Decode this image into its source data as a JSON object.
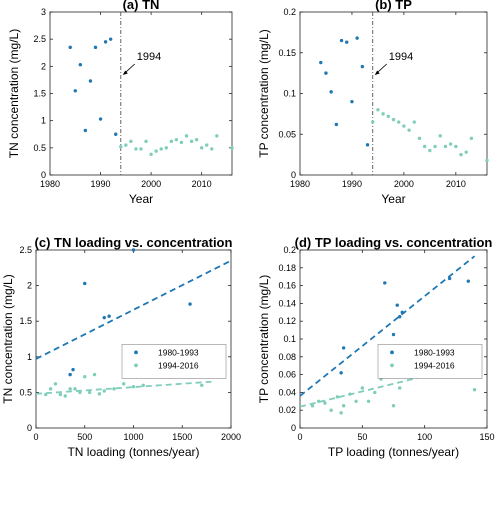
{
  "colors": {
    "pre": "#1f77b4",
    "post": "#7fcdbb",
    "axis": "#262626",
    "vline": "#555555"
  },
  "chart_data": [
    {
      "id": "a",
      "type": "scatter",
      "title": "(a) TN",
      "xlabel": "Year",
      "ylabel": "TN concentration (mg/L)",
      "xlim": [
        1980,
        2016
      ],
      "ylim": [
        0,
        3
      ],
      "xticks": [
        1980,
        1990,
        2000,
        2010
      ],
      "yticks": [
        0,
        0.5,
        1,
        1.5,
        2,
        2.5,
        3
      ],
      "annotation": {
        "text": "1994",
        "x": 1994
      },
      "series": [
        {
          "key": "pre",
          "points": [
            [
              1984,
              2.35
            ],
            [
              1985,
              1.55
            ],
            [
              1986,
              2.03
            ],
            [
              1987,
              0.82
            ],
            [
              1988,
              1.73
            ],
            [
              1989,
              2.35
            ],
            [
              1990,
              1.03
            ],
            [
              1991,
              2.45
            ],
            [
              1992,
              2.5
            ],
            [
              1993,
              0.75
            ]
          ]
        },
        {
          "key": "post",
          "points": [
            [
              1994,
              0.52
            ],
            [
              1995,
              0.55
            ],
            [
              1996,
              0.62
            ],
            [
              1997,
              0.48
            ],
            [
              1998,
              0.48
            ],
            [
              1999,
              0.62
            ],
            [
              2000,
              0.38
            ],
            [
              2001,
              0.44
            ],
            [
              2002,
              0.48
            ],
            [
              2003,
              0.5
            ],
            [
              2004,
              0.62
            ],
            [
              2005,
              0.65
            ],
            [
              2006,
              0.6
            ],
            [
              2007,
              0.72
            ],
            [
              2008,
              0.62
            ],
            [
              2009,
              0.65
            ],
            [
              2010,
              0.5
            ],
            [
              2011,
              0.55
            ],
            [
              2012,
              0.48
            ],
            [
              2013,
              0.72
            ],
            [
              2016,
              0.5
            ]
          ]
        }
      ]
    },
    {
      "id": "b",
      "type": "scatter",
      "title": "(b) TP",
      "xlabel": "Year",
      "ylabel": "TP concentration (mg/L)",
      "xlim": [
        1980,
        2016
      ],
      "ylim": [
        0,
        0.2
      ],
      "xticks": [
        1980,
        1990,
        2000,
        2010
      ],
      "yticks": [
        0,
        0.05,
        0.1,
        0.15,
        0.2
      ],
      "annotation": {
        "text": "1994",
        "x": 1994
      },
      "series": [
        {
          "key": "pre",
          "points": [
            [
              1984,
              0.138
            ],
            [
              1985,
              0.125
            ],
            [
              1986,
              0.102
            ],
            [
              1987,
              0.062
            ],
            [
              1988,
              0.165
            ],
            [
              1989,
              0.163
            ],
            [
              1990,
              0.09
            ],
            [
              1991,
              0.168
            ],
            [
              1992,
              0.133
            ],
            [
              1993,
              0.037
            ]
          ]
        },
        {
          "key": "post",
          "points": [
            [
              1994,
              0.065
            ],
            [
              1995,
              0.08
            ],
            [
              1996,
              0.075
            ],
            [
              1997,
              0.072
            ],
            [
              1998,
              0.068
            ],
            [
              1999,
              0.065
            ],
            [
              2000,
              0.06
            ],
            [
              2001,
              0.055
            ],
            [
              2002,
              0.065
            ],
            [
              2003,
              0.045
            ],
            [
              2004,
              0.035
            ],
            [
              2005,
              0.03
            ],
            [
              2006,
              0.035
            ],
            [
              2007,
              0.048
            ],
            [
              2008,
              0.035
            ],
            [
              2009,
              0.038
            ],
            [
              2010,
              0.035
            ],
            [
              2011,
              0.025
            ],
            [
              2012,
              0.028
            ],
            [
              2013,
              0.045
            ],
            [
              2016,
              0.018
            ]
          ]
        }
      ]
    },
    {
      "id": "c",
      "type": "scatter",
      "title": "(c) TN loading vs. concentration",
      "xlabel": "TN loading (tonnes/year)",
      "ylabel": "TN concentration (mg/L)",
      "xlim": [
        0,
        2000
      ],
      "ylim": [
        0,
        2.5
      ],
      "xticks": [
        0,
        500,
        1000,
        1500,
        2000
      ],
      "yticks": [
        0,
        0.5,
        1,
        1.5,
        2,
        2.5
      ],
      "legend": {
        "position": "right",
        "entries": [
          {
            "key": "pre",
            "label": "1980-1993"
          },
          {
            "key": "post",
            "label": "1994-2016"
          }
        ]
      },
      "series": [
        {
          "key": "pre",
          "points": [
            [
              350,
              0.75
            ],
            [
              380,
              0.82
            ],
            [
              500,
              2.03
            ],
            [
              700,
              1.55
            ],
            [
              750,
              1.57
            ],
            [
              1000,
              2.5
            ],
            [
              1580,
              1.74
            ]
          ]
        },
        {
          "key": "post",
          "points": [
            [
              100,
              0.47
            ],
            [
              150,
              0.55
            ],
            [
              200,
              0.62
            ],
            [
              250,
              0.47
            ],
            [
              300,
              0.45
            ],
            [
              350,
              0.55
            ],
            [
              400,
              0.55
            ],
            [
              450,
              0.5
            ],
            [
              500,
              0.72
            ],
            [
              550,
              0.5
            ],
            [
              600,
              0.75
            ],
            [
              650,
              0.48
            ],
            [
              700,
              0.52
            ],
            [
              800,
              0.55
            ],
            [
              900,
              0.62
            ],
            [
              1000,
              0.58
            ],
            [
              1100,
              0.6
            ],
            [
              1700,
              0.6
            ]
          ]
        }
      ],
      "fits": [
        {
          "key": "pre",
          "from": [
            0,
            0.97
          ],
          "to": [
            2000,
            2.35
          ]
        },
        {
          "key": "post",
          "from": [
            0,
            0.48
          ],
          "to": [
            1800,
            0.65
          ]
        }
      ]
    },
    {
      "id": "d",
      "type": "scatter",
      "title": "(d) TP loading vs. concentration",
      "xlabel": "TP loading (tonnes/year)",
      "ylabel": "TP concentration (mg/L)",
      "xlim": [
        0,
        150
      ],
      "ylim": [
        0,
        0.2
      ],
      "xticks": [
        0,
        50,
        100,
        150
      ],
      "yticks": [
        0,
        0.02,
        0.04,
        0.06,
        0.08,
        0.1,
        0.12,
        0.14,
        0.16,
        0.18,
        0.2
      ],
      "legend": {
        "position": "right",
        "entries": [
          {
            "key": "pre",
            "label": "1980-1993"
          },
          {
            "key": "post",
            "label": "1994-2016"
          }
        ]
      },
      "series": [
        {
          "key": "pre",
          "points": [
            [
              33,
              0.062
            ],
            [
              35,
              0.09
            ],
            [
              68,
              0.163
            ],
            [
              75,
              0.105
            ],
            [
              78,
              0.138
            ],
            [
              80,
              0.125
            ],
            [
              82,
              0.13
            ],
            [
              120,
              0.168
            ],
            [
              135,
              0.165
            ]
          ]
        },
        {
          "key": "post",
          "points": [
            [
              10,
              0.025
            ],
            [
              15,
              0.03
            ],
            [
              20,
              0.028
            ],
            [
              25,
              0.02
            ],
            [
              30,
              0.035
            ],
            [
              33,
              0.017
            ],
            [
              35,
              0.025
            ],
            [
              40,
              0.038
            ],
            [
              45,
              0.03
            ],
            [
              50,
              0.045
            ],
            [
              55,
              0.03
            ],
            [
              60,
              0.04
            ],
            [
              65,
              0.055
            ],
            [
              70,
              0.08
            ],
            [
              75,
              0.025
            ],
            [
              80,
              0.045
            ],
            [
              90,
              0.07
            ],
            [
              140,
              0.043
            ]
          ]
        }
      ],
      "fits": [
        {
          "key": "pre",
          "from": [
            0,
            0.036
          ],
          "to": [
            140,
            0.193
          ]
        },
        {
          "key": "post",
          "from": [
            0,
            0.024
          ],
          "to": [
            140,
            0.072
          ]
        }
      ]
    }
  ]
}
